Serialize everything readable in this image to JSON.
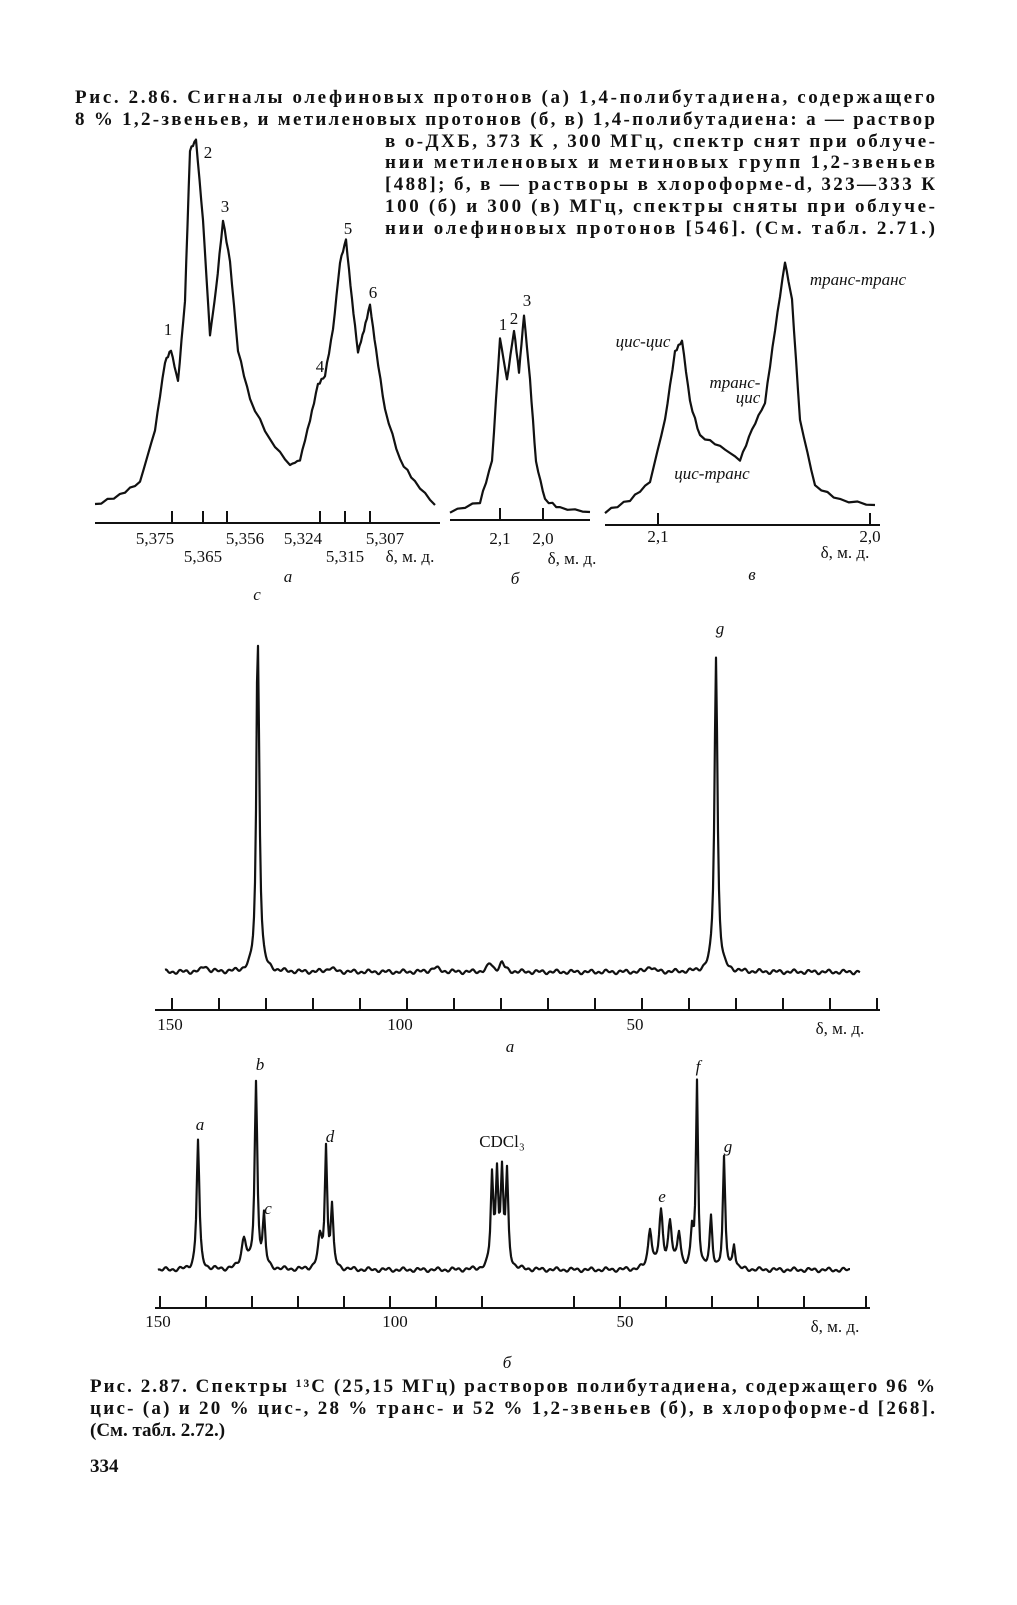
{
  "fig_2_86": {
    "caption_lines": [
      "Рис. 2.86. Сигналы олефиновых протонов (а) 1,4-полибутадиена, содержащего",
      "8 % 1,2-звеньев, и метиленовых протонов (б, в) 1,4-полибутадиена: а — раствор",
      "в о-ДХБ, 373 К , 300 МГц, спектр снят при облуче-",
      "нии метиленовых и метиновых групп 1,2-звеньев",
      "[488]; б, в — растворы в хлороформе-d, 323—333 К",
      "100 (б) и 300 (в) МГц, спектры сняты при облуче-",
      "нии олефиновых протонов [546]. (См. табл. 2.71.)"
    ],
    "panel_a": {
      "peaks": [
        "1",
        "2",
        "3",
        "4",
        "5",
        "6"
      ],
      "ticks": [
        "5,375",
        "5,365",
        "5,356",
        "5,324",
        "5,315",
        "5,307"
      ],
      "axis_label": "δ, м. д.",
      "letter": "а"
    },
    "panel_b": {
      "peaks": [
        "1",
        "2",
        "3"
      ],
      "ticks": [
        "2,1",
        "2,0"
      ],
      "axis_label": "δ, м. д.",
      "letter": "б"
    },
    "panel_c": {
      "labels": [
        "транс-транс",
        "цис-цис",
        "транс-",
        "цис",
        "цис-транс"
      ],
      "ticks": [
        "2,1",
        "2,0"
      ],
      "axis_label": "δ, м. д.",
      "letter": "в"
    }
  },
  "fig_2_87": {
    "spectrum_a": {
      "peaks": [
        "c",
        "g"
      ],
      "ticks": [
        "150",
        "100",
        "50"
      ],
      "axis_label": "δ, м. д.",
      "letter": "а"
    },
    "spectrum_b": {
      "peaks": [
        "a",
        "b",
        "c",
        "d",
        "CDCl₃",
        "e",
        "f",
        "g"
      ],
      "ticks": [
        "150",
        "100",
        "50"
      ],
      "axis_label": "δ, м. д.",
      "letter": "б"
    },
    "caption_lines": [
      "Рис. 2.87. Спектры ¹³C (25,15 МГц) растворов полибутадиена, содержащего 96 %",
      "цис- (а) и 20 % цис-, 28 % транс- и 52 % 1,2-звеньев (б), в хлороформе-d [268].",
      "(См. табл. 2.72.)"
    ],
    "page_number": "334"
  }
}
